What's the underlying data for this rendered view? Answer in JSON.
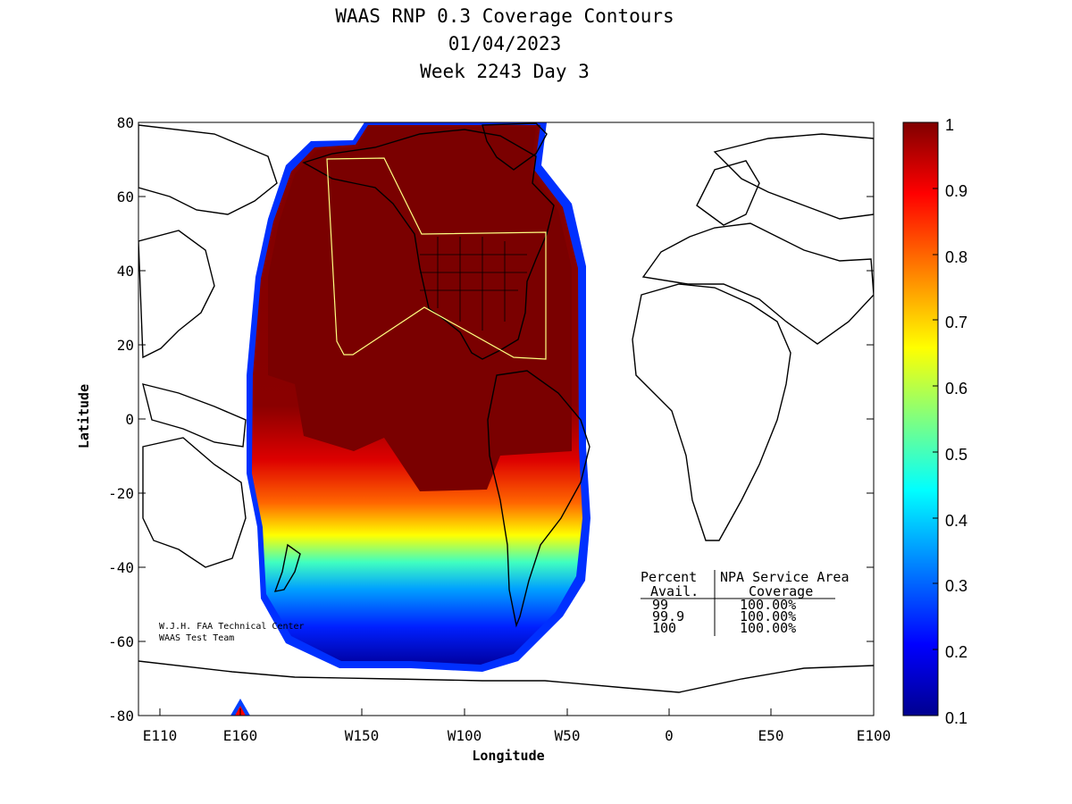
{
  "title": {
    "line1": "WAAS RNP 0.3 Coverage Contours",
    "line2": "01/04/2023",
    "line3": "Week 2243 Day 3"
  },
  "axes": {
    "xlabel": "Longitude",
    "ylabel": "Latitude",
    "xticks": [
      "E110",
      "E160",
      "W150",
      "W100",
      "W50",
      "0",
      "E50",
      "E100"
    ],
    "yticks": [
      "80",
      "60",
      "40",
      "20",
      "0",
      "-20",
      "-40",
      "-60",
      "-80"
    ]
  },
  "colorbar": {
    "ticks": [
      "1",
      "0.9",
      "0.8",
      "0.7",
      "0.6",
      "0.5",
      "0.4",
      "0.3",
      "0.2",
      "0.1"
    ],
    "min": 0.1,
    "max": 1,
    "colors": [
      "#00008f",
      "#0000ff",
      "#00ffff",
      "#ffff00",
      "#ff0000",
      "#800000"
    ]
  },
  "credit": {
    "line1": "W.J.H. FAA Technical Center",
    "line2": "WAAS Test Team"
  },
  "stats_table": {
    "header1_col1": "Percent",
    "header1_col2": "NPA Service Area",
    "header2_col1": "Avail.",
    "header2_col2": "Coverage",
    "rows": [
      {
        "avail": "99",
        "coverage": "100.00%"
      },
      {
        "avail": "99.9",
        "coverage": "100.00%"
      },
      {
        "avail": "100",
        "coverage": "100.00%"
      }
    ]
  }
}
